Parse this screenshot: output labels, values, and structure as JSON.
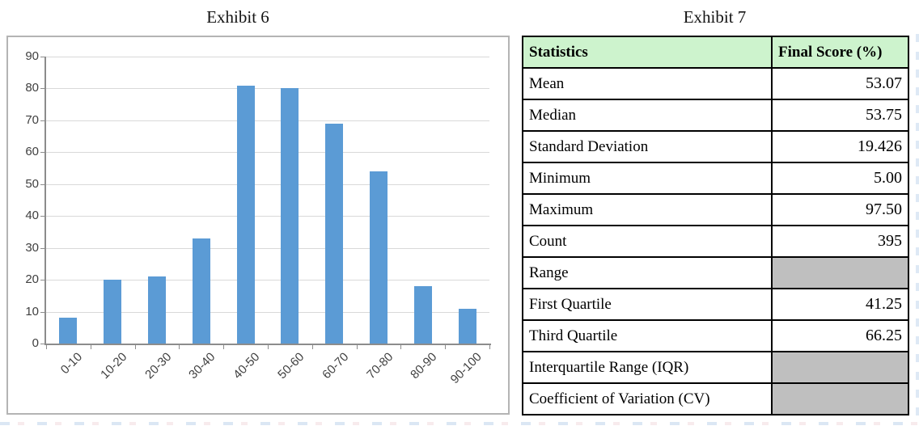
{
  "titles": {
    "exhibit6": "Exhibit 6",
    "exhibit7": "Exhibit 7"
  },
  "chart_data": {
    "type": "bar",
    "title": "Exhibit 6",
    "categories": [
      "0-10",
      "10-20",
      "20-30",
      "30-40",
      "40-50",
      "50-60",
      "60-70",
      "70-80",
      "80-90",
      "90-100"
    ],
    "values": [
      8,
      20,
      21,
      33,
      81,
      80,
      69,
      54,
      18,
      11
    ],
    "xlabel": "",
    "ylabel": "",
    "ylim": [
      0,
      90
    ],
    "yticks": [
      0,
      10,
      20,
      30,
      40,
      50,
      60,
      70,
      80,
      90
    ],
    "grid": true,
    "legend": "none",
    "bar_color": "#5b9bd5",
    "gridline_color": "#d9d9d9",
    "axis_color": "#8c8c8c"
  },
  "table": {
    "title": "Exhibit 7",
    "columns": [
      "Statistics",
      "Final Score (%)"
    ],
    "rows": [
      {
        "label": "Mean",
        "value": "53.07"
      },
      {
        "label": "Median",
        "value": "53.75"
      },
      {
        "label": "Standard Deviation",
        "value": "19.426"
      },
      {
        "label": "Minimum",
        "value": "5.00"
      },
      {
        "label": "Maximum",
        "value": "97.50"
      },
      {
        "label": "Count",
        "value": "395"
      },
      {
        "label": "Range",
        "value": null
      },
      {
        "label": "First Quartile",
        "value": "41.25"
      },
      {
        "label": "Third Quartile",
        "value": "66.25"
      },
      {
        "label": "Interquartile Range (IQR)",
        "value": null
      },
      {
        "label": "Coefficient of Variation (CV)",
        "value": null
      }
    ],
    "header_bg": "#cdf3cd",
    "empty_cell_bg": "#bfbfbf"
  }
}
